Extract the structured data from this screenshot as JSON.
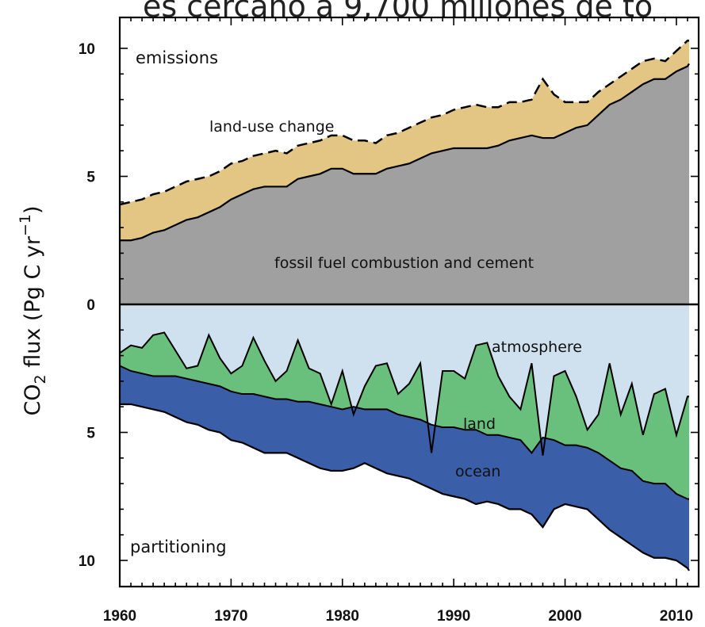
{
  "header_text": "es cercano a 9,700 millones de to",
  "chart_data": {
    "type": "area",
    "ylabel": "CO2 flux (Pg C yr−1)",
    "ylabel_parts": {
      "a": "CO",
      "sub": "2",
      "b": " flux (Pg C yr",
      "sup": "−1",
      "c": ")"
    },
    "xlim": [
      1960,
      2012
    ],
    "ylim_emissions": [
      0,
      10.5
    ],
    "ylim_partitioning": [
      0,
      10.5
    ],
    "x_ticks": [
      1960,
      1970,
      1980,
      1990,
      2000,
      2010
    ],
    "x_tick_labels": [
      "1960",
      "1970",
      "1980",
      "1990",
      "2000",
      "2010"
    ],
    "y_tick_labels": [
      "10",
      "5",
      "0",
      "5",
      "10"
    ],
    "panel_labels": {
      "top": "emissions",
      "bottom": "partitioning"
    },
    "colors": {
      "fossil": "#a0a0a0",
      "land_use": "#e3c584",
      "atmosphere": "#cfe0ef",
      "land": "#69bf7c",
      "ocean": "#3a5ea8"
    },
    "years": [
      1960,
      1961,
      1962,
      1963,
      1964,
      1965,
      1966,
      1967,
      1968,
      1969,
      1970,
      1971,
      1972,
      1973,
      1974,
      1975,
      1976,
      1977,
      1978,
      1979,
      1980,
      1981,
      1982,
      1983,
      1984,
      1985,
      1986,
      1987,
      1988,
      1989,
      1990,
      1991,
      1992,
      1993,
      1994,
      1995,
      1996,
      1997,
      1998,
      1999,
      2000,
      2001,
      2002,
      2003,
      2004,
      2005,
      2006,
      2007,
      2008,
      2009,
      2010,
      2011,
      2012
    ],
    "series": [
      {
        "name": "fossil fuel combustion and cement",
        "kind": "emissions",
        "values": [
          2.5,
          2.5,
          2.6,
          2.8,
          2.9,
          3.1,
          3.3,
          3.4,
          3.6,
          3.8,
          4.1,
          4.3,
          4.5,
          4.6,
          4.6,
          4.6,
          4.9,
          5.0,
          5.1,
          5.3,
          5.3,
          5.1,
          5.1,
          5.1,
          5.3,
          5.4,
          5.5,
          5.7,
          5.9,
          6.0,
          6.1,
          6.1,
          6.1,
          6.1,
          6.2,
          6.4,
          6.5,
          6.6,
          6.5,
          6.5,
          6.7,
          6.9,
          7.0,
          7.4,
          7.8,
          8.0,
          8.3,
          8.6,
          8.8,
          8.8,
          9.1,
          9.3,
          9.4
        ]
      },
      {
        "name": "land-use change",
        "kind": "emissions_total",
        "values": [
          3.9,
          4.0,
          4.1,
          4.3,
          4.4,
          4.6,
          4.8,
          4.9,
          5.0,
          5.2,
          5.5,
          5.6,
          5.8,
          5.9,
          6.0,
          5.9,
          6.2,
          6.3,
          6.4,
          6.6,
          6.6,
          6.4,
          6.4,
          6.3,
          6.6,
          6.7,
          6.9,
          7.1,
          7.3,
          7.4,
          7.6,
          7.7,
          7.8,
          7.7,
          7.7,
          7.9,
          7.9,
          8.0,
          8.8,
          8.2,
          7.9,
          7.9,
          7.9,
          8.3,
          8.6,
          8.9,
          9.2,
          9.5,
          9.6,
          9.5,
          9.9,
          10.3,
          10.3
        ]
      },
      {
        "name": "atmosphere",
        "kind": "partitioning_upper",
        "values": [
          1.9,
          1.6,
          1.7,
          1.2,
          1.1,
          1.8,
          2.5,
          2.4,
          1.2,
          2.1,
          2.7,
          2.4,
          1.3,
          2.2,
          3.0,
          2.6,
          1.4,
          2.5,
          2.7,
          3.9,
          2.6,
          4.3,
          3.2,
          2.4,
          2.3,
          3.5,
          3.1,
          2.3,
          5.8,
          2.6,
          2.6,
          2.9,
          1.6,
          1.5,
          2.8,
          3.6,
          4.1,
          2.3,
          5.9,
          2.8,
          2.6,
          3.6,
          4.9,
          4.3,
          2.3,
          4.3,
          3.1,
          5.1,
          3.5,
          3.3,
          5.1,
          3.6,
          3.6
        ]
      },
      {
        "name": "land",
        "kind": "partitioning_mid",
        "values": [
          2.4,
          2.6,
          2.7,
          2.8,
          2.8,
          2.8,
          2.9,
          3.0,
          3.1,
          3.2,
          3.4,
          3.5,
          3.5,
          3.6,
          3.7,
          3.7,
          3.8,
          3.8,
          3.9,
          4.0,
          4.1,
          4.0,
          4.1,
          4.1,
          4.1,
          4.3,
          4.4,
          4.5,
          4.7,
          4.8,
          4.8,
          4.9,
          4.9,
          5.1,
          5.1,
          5.2,
          5.3,
          5.8,
          5.2,
          5.3,
          5.5,
          5.5,
          5.6,
          5.8,
          6.1,
          6.4,
          6.5,
          6.9,
          7.0,
          7.0,
          7.4,
          7.6,
          7.6
        ]
      },
      {
        "name": "ocean",
        "kind": "partitioning_total",
        "values": [
          3.9,
          3.9,
          4.0,
          4.1,
          4.2,
          4.4,
          4.6,
          4.7,
          4.9,
          5.0,
          5.3,
          5.4,
          5.6,
          5.8,
          5.8,
          5.8,
          6.0,
          6.2,
          6.4,
          6.5,
          6.5,
          6.4,
          6.2,
          6.4,
          6.6,
          6.7,
          6.8,
          7.0,
          7.2,
          7.4,
          7.5,
          7.6,
          7.8,
          7.7,
          7.8,
          8.0,
          8.0,
          8.2,
          8.7,
          8.0,
          7.8,
          7.9,
          8.0,
          8.4,
          8.8,
          9.1,
          9.4,
          9.7,
          9.9,
          9.9,
          10.0,
          10.3,
          10.4
        ]
      }
    ],
    "annotations": [
      "land-use change",
      "fossil fuel combustion and cement",
      "atmosphere",
      "land",
      "ocean"
    ]
  }
}
